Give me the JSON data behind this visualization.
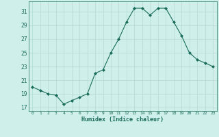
{
  "x": [
    0,
    1,
    2,
    3,
    4,
    5,
    6,
    7,
    8,
    9,
    10,
    11,
    12,
    13,
    14,
    15,
    16,
    17,
    18,
    19,
    20,
    21,
    22,
    23
  ],
  "y": [
    20.0,
    19.5,
    19.0,
    18.8,
    17.5,
    18.0,
    18.5,
    19.0,
    22.0,
    22.5,
    25.0,
    27.0,
    29.5,
    31.5,
    31.5,
    30.5,
    31.5,
    31.5,
    29.5,
    27.5,
    25.0,
    24.0,
    23.5,
    23.0
  ],
  "line_color": "#1a6b5a",
  "marker": "D",
  "marker_size": 2,
  "bg_color": "#cff0ea",
  "grid_color": "#b8ddd7",
  "tick_color": "#1a6b5a",
  "xlabel": "Humidex (Indice chaleur)",
  "ylabel_ticks": [
    17,
    19,
    21,
    23,
    25,
    27,
    29,
    31
  ],
  "xlim": [
    -0.5,
    23.5
  ],
  "ylim": [
    16.5,
    32.5
  ],
  "xticks": [
    0,
    1,
    2,
    3,
    4,
    5,
    6,
    7,
    8,
    9,
    10,
    11,
    12,
    13,
    14,
    15,
    16,
    17,
    18,
    19,
    20,
    21,
    22,
    23
  ]
}
